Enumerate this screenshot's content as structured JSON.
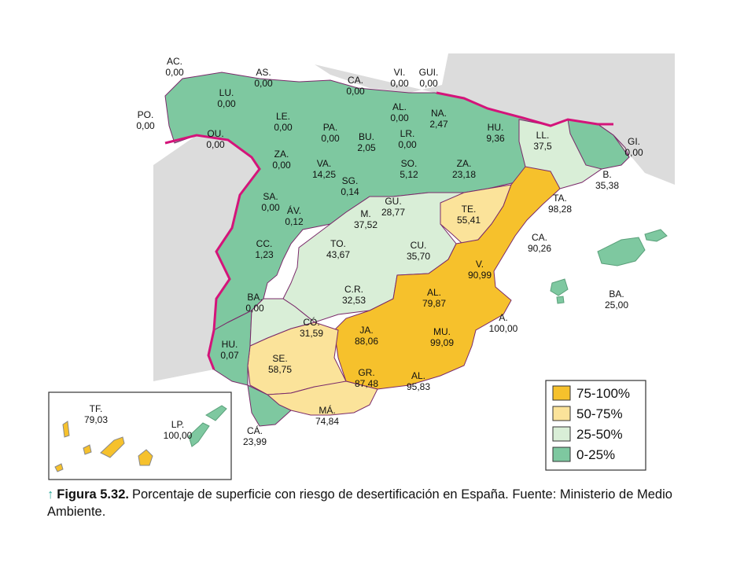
{
  "caption": {
    "arrow": "↑",
    "figure_label": "Figura 5.32.",
    "text": "Porcentaje de superficie con riesgo de desertificación en España. Fuente: Ministerio de Medio Ambiente."
  },
  "colors": {
    "band_75_100": "#f6c12c",
    "band_50_75": "#fbe39a",
    "band_25_50": "#d9eed7",
    "band_0_25": "#7ec8a0",
    "foreign_land": "#dcdcdc",
    "border_magenta": "#d4147a",
    "province_line": "#7a2a6a"
  },
  "legend": [
    {
      "label": "75-100%",
      "band": "band_75_100"
    },
    {
      "label": "50-75%",
      "band": "band_50_75"
    },
    {
      "label": "25-50%",
      "band": "band_25_50"
    },
    {
      "label": "0-25%",
      "band": "band_0_25"
    }
  ],
  "provinces": [
    {
      "abbr": "AC.",
      "value": "0,00",
      "band": "band_0_25"
    },
    {
      "abbr": "AS.",
      "value": "0,00",
      "band": "band_0_25"
    },
    {
      "abbr": "CA.",
      "value": "0,00",
      "band": "band_0_25"
    },
    {
      "abbr": "VI.",
      "value": "0,00",
      "band": "band_0_25"
    },
    {
      "abbr": "GUI.",
      "value": "0,00",
      "band": "band_0_25"
    },
    {
      "abbr": "LU.",
      "value": "0,00",
      "band": "band_0_25"
    },
    {
      "abbr": "PO.",
      "value": "0,00",
      "band": "band_0_25"
    },
    {
      "abbr": "LE.",
      "value": "0,00",
      "band": "band_0_25"
    },
    {
      "abbr": "PA.",
      "value": "0,00",
      "band": "band_0_25"
    },
    {
      "abbr": "AL.",
      "value": "0,00",
      "band": "band_0_25"
    },
    {
      "abbr": "NA.",
      "value": "2,47",
      "band": "band_0_25"
    },
    {
      "abbr": "OU.",
      "value": "0,00",
      "band": "band_0_25"
    },
    {
      "abbr": "BU.",
      "value": "2,05",
      "band": "band_0_25"
    },
    {
      "abbr": "LR.",
      "value": "0,00",
      "band": "band_0_25"
    },
    {
      "abbr": "HU.",
      "value": "9,36",
      "band": "band_0_25"
    },
    {
      "abbr": "LL.",
      "value": "37,5",
      "band": "band_25_50"
    },
    {
      "abbr": "GI.",
      "value": "0,00",
      "band": "band_0_25"
    },
    {
      "abbr": "ZA.",
      "value": "0,00",
      "band": "band_0_25"
    },
    {
      "abbr": "VA.",
      "value": "14,25",
      "band": "band_0_25"
    },
    {
      "abbr": "SO.",
      "value": "5,12",
      "band": "band_0_25"
    },
    {
      "abbr": "ZA.",
      "value": "23,18",
      "band": "band_0_25"
    },
    {
      "abbr": "B.",
      "value": "35,38",
      "band": "band_25_50"
    },
    {
      "abbr": "SG.",
      "value": "0,14",
      "band": "band_0_25"
    },
    {
      "abbr": "SA.",
      "value": "0,00",
      "band": "band_0_25"
    },
    {
      "abbr": "GU.",
      "value": "28,77",
      "band": "band_25_50"
    },
    {
      "abbr": "TA.",
      "value": "98,28",
      "band": "band_75_100"
    },
    {
      "abbr": "ÁV.",
      "value": "0,12",
      "band": "band_0_25"
    },
    {
      "abbr": "M.",
      "value": "37,52",
      "band": "band_25_50"
    },
    {
      "abbr": "TE.",
      "value": "55,41",
      "band": "band_50_75"
    },
    {
      "abbr": "CC.",
      "value": "1,23",
      "band": "band_0_25"
    },
    {
      "abbr": "TO.",
      "value": "43,67",
      "band": "band_25_50"
    },
    {
      "abbr": "CU.",
      "value": "35,70",
      "band": "band_25_50"
    },
    {
      "abbr": "CA.",
      "value": "90,26",
      "band": "band_75_100"
    },
    {
      "abbr": "V.",
      "value": "90,99",
      "band": "band_75_100"
    },
    {
      "abbr": "BA.",
      "value": "25,00",
      "band": "band_25_50"
    },
    {
      "abbr": "C.R.",
      "value": "32,53",
      "band": "band_25_50"
    },
    {
      "abbr": "AL.",
      "value": "79,87",
      "band": "band_75_100"
    },
    {
      "abbr": "BA.",
      "value": "0,00",
      "band": "band_0_25"
    },
    {
      "abbr": "A.",
      "value": "100,00",
      "band": "band_75_100"
    },
    {
      "abbr": "CÓ.",
      "value": "31,59",
      "band": "band_25_50"
    },
    {
      "abbr": "JA.",
      "value": "88,06",
      "band": "band_75_100"
    },
    {
      "abbr": "MU.",
      "value": "99,09",
      "band": "band_75_100"
    },
    {
      "abbr": "HU.",
      "value": "0,07",
      "band": "band_0_25"
    },
    {
      "abbr": "SE.",
      "value": "58,75",
      "band": "band_50_75"
    },
    {
      "abbr": "GR.",
      "value": "87,48",
      "band": "band_75_100"
    },
    {
      "abbr": "AL.",
      "value": "95,83",
      "band": "band_75_100"
    },
    {
      "abbr": "MÁ.",
      "value": "74,84",
      "band": "band_50_75"
    },
    {
      "abbr": "CÁ.",
      "value": "23,99",
      "band": "band_0_25"
    },
    {
      "abbr": "TF.",
      "value": "79,03",
      "band": "band_75_100"
    },
    {
      "abbr": "LP.",
      "value": "100,00",
      "band": "band_75_100"
    }
  ]
}
